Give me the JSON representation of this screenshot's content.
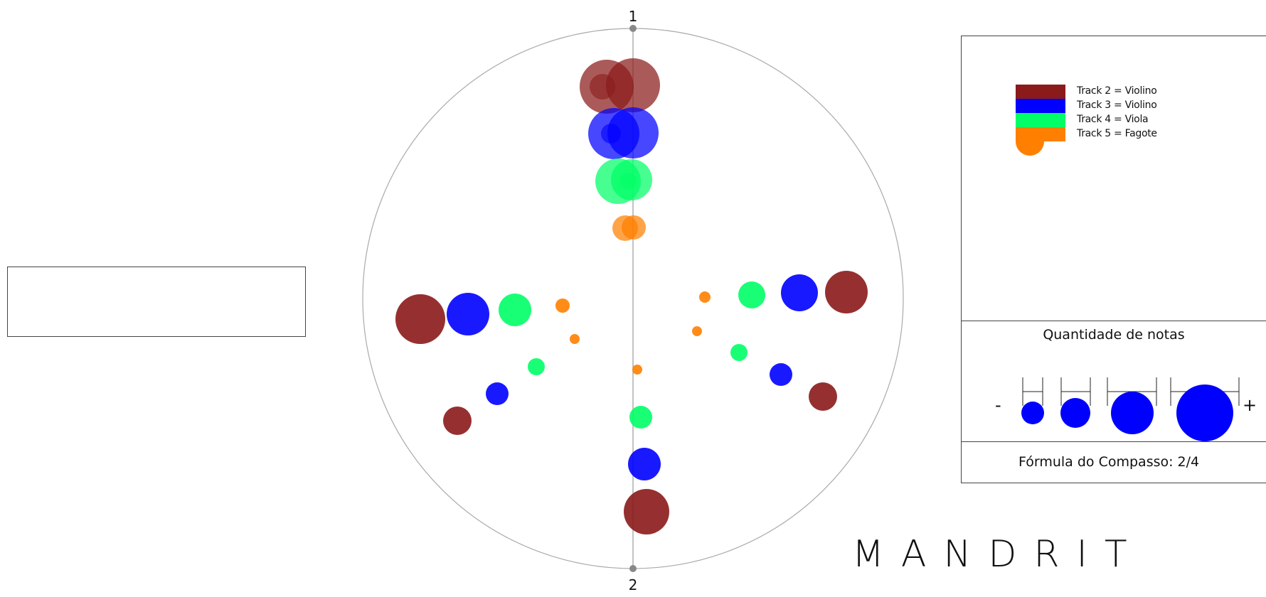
{
  "brand": "MANDRIT",
  "chart_data": {
    "type": "scatter",
    "beat_labels": [
      "1",
      "2"
    ],
    "note_quantity_title": "Quantidade de notas",
    "quantity_scale_ends": {
      "min": "-",
      "max": "+"
    },
    "quantity_scale_levels": [
      1,
      2,
      3,
      4
    ],
    "time_signature_label": "Fórmula do Compasso: 2/4",
    "series": [
      {
        "name": "Track 2 = Violino",
        "color": "#8b1a1a"
      },
      {
        "name": "Track 3 = Violino",
        "color": "#0000ff"
      },
      {
        "name": "Track 4 = Viola",
        "color": "#00ff66"
      },
      {
        "name": "Track 5 = Fagote",
        "color": "#ff7f00"
      }
    ]
  }
}
